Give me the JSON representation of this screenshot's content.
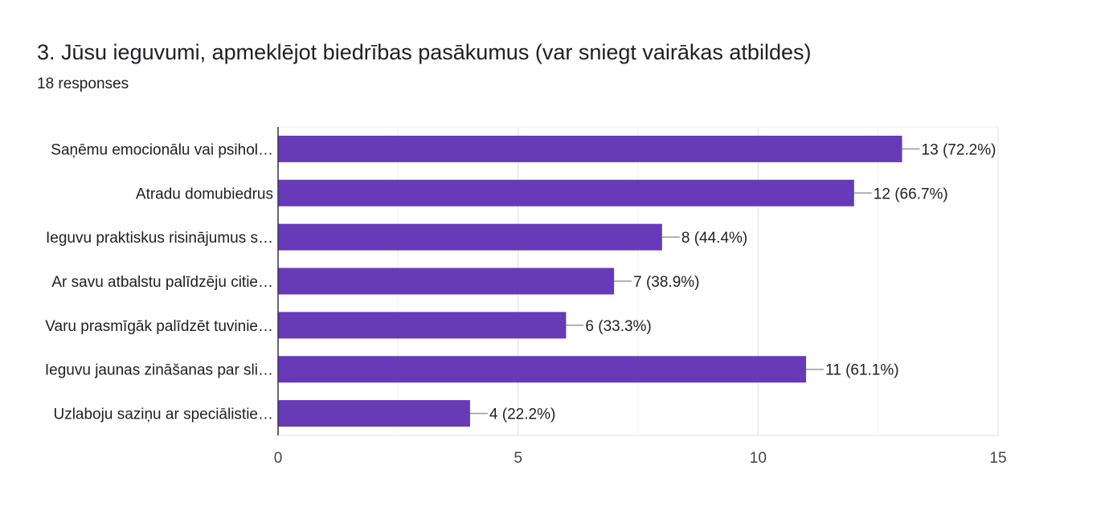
{
  "header": {
    "title": "3. Jūsu ieguvumi, apmeklējot biedrības pasākumus (var sniegt vairākas atbildes)",
    "responses": "18 responses"
  },
  "chart_data": {
    "type": "bar",
    "orientation": "horizontal",
    "categories": [
      "Saņēmu emocionālu vai psihol…",
      "Atradu domubiedrus",
      "Ieguvu praktiskus risinājumus s…",
      "Ar savu atbalstu palīdzēju citie…",
      "Varu prasmīgāk palīdzēt tuvinie…",
      "Ieguvu jaunas zināšanas par sli…",
      "Uzlaboju saziņu ar speciālistie…"
    ],
    "values": [
      13,
      12,
      8,
      7,
      6,
      11,
      4
    ],
    "data_labels": [
      "13 (72.2%)",
      "12 (66.7%)",
      "8 (44.4%)",
      "7 (38.9%)",
      "6 (33.3%)",
      "11 (61.1%)",
      "4 (22.2%)"
    ],
    "xlim": [
      0,
      15
    ],
    "xticks": [
      "0",
      "5",
      "10",
      "15"
    ],
    "xtick_values": [
      0,
      5,
      10,
      15
    ],
    "minor_grid_step": 2.5,
    "grid": true,
    "bar_color": "#673ab7",
    "title": "",
    "xlabel": "",
    "ylabel": ""
  }
}
